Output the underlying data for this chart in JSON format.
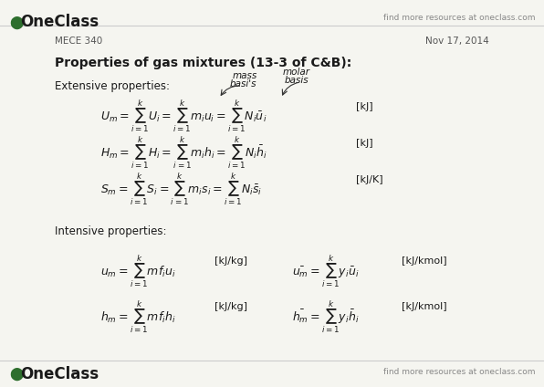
{
  "bg_color": "#f5f5f0",
  "text_color": "#1a1a1a",
  "logo_color": "#2d6e2d",
  "header_left": "MECE 340",
  "header_right": "Nov 17, 2014",
  "watermark_left": "OneClass",
  "watermark_right": "find more resources at oneclass.com",
  "title": "Properties of gas mixtures (13-3 of C&B):",
  "extensive_label": "Extensive properties:",
  "intensive_label": "Intensive properties:",
  "annotation_mass": "mass\nbasi\\'s",
  "annotation_molar": "molar\nbasis",
  "footer_left": "OneClass",
  "footer_right": "find more resources at oneclass.com"
}
